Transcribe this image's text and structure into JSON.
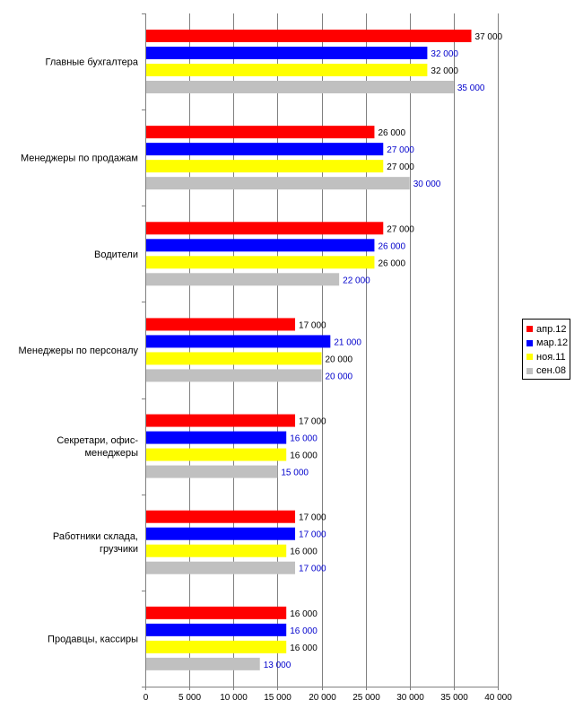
{
  "chart_data": {
    "type": "bar",
    "orientation": "horizontal",
    "categories": [
      [
        "Главные бухгалтера"
      ],
      [
        "Менеджеры по продажам"
      ],
      [
        "Водители"
      ],
      [
        "Менеджеры по персоналу"
      ],
      [
        "Секретари, офис-",
        "менеджеры"
      ],
      [
        "Работники склада,",
        "грузчики"
      ],
      [
        "Продавцы, кассиры"
      ]
    ],
    "series": [
      {
        "name": "апр.12",
        "color": "#ff0000",
        "label_color": "#000000",
        "values": [
          37000,
          26000,
          27000,
          17000,
          17000,
          17000,
          16000
        ],
        "labels": [
          "37 000",
          "26 000",
          "27 000",
          "17 000",
          "17 000",
          "17 000",
          "16 000"
        ]
      },
      {
        "name": "мар.12",
        "color": "#0000ff",
        "label_color": "#0000cc",
        "values": [
          32000,
          27000,
          26000,
          21000,
          16000,
          17000,
          16000
        ],
        "labels": [
          "32 000",
          "27 000",
          "26 000",
          "21 000",
          "16 000",
          "17 000",
          "16 000"
        ]
      },
      {
        "name": "ноя.11",
        "color": "#ffff00",
        "label_color": "#000000",
        "values": [
          32000,
          27000,
          26000,
          20000,
          16000,
          16000,
          16000
        ],
        "labels": [
          "32 000",
          "27 000",
          "26 000",
          "20 000",
          "16 000",
          "16 000",
          "16 000"
        ]
      },
      {
        "name": "сен.08",
        "color": "#c0c0c0",
        "label_color": "#0000cc",
        "values": [
          35000,
          30000,
          22000,
          20000,
          15000,
          17000,
          13000
        ],
        "labels": [
          "35 000",
          "30 000",
          "22 000",
          "20 000",
          "15 000",
          "17 000",
          "13 000"
        ]
      }
    ],
    "xlim": [
      0,
      40000
    ],
    "ticks": [
      0,
      5000,
      10000,
      15000,
      20000,
      25000,
      30000,
      35000,
      40000
    ],
    "tick_labels": [
      "0",
      "5 000",
      "10 000",
      "15 000",
      "20 000",
      "25 000",
      "30 000",
      "35 000",
      "40 000"
    ],
    "grid": "vertical",
    "legend_position": "right"
  }
}
